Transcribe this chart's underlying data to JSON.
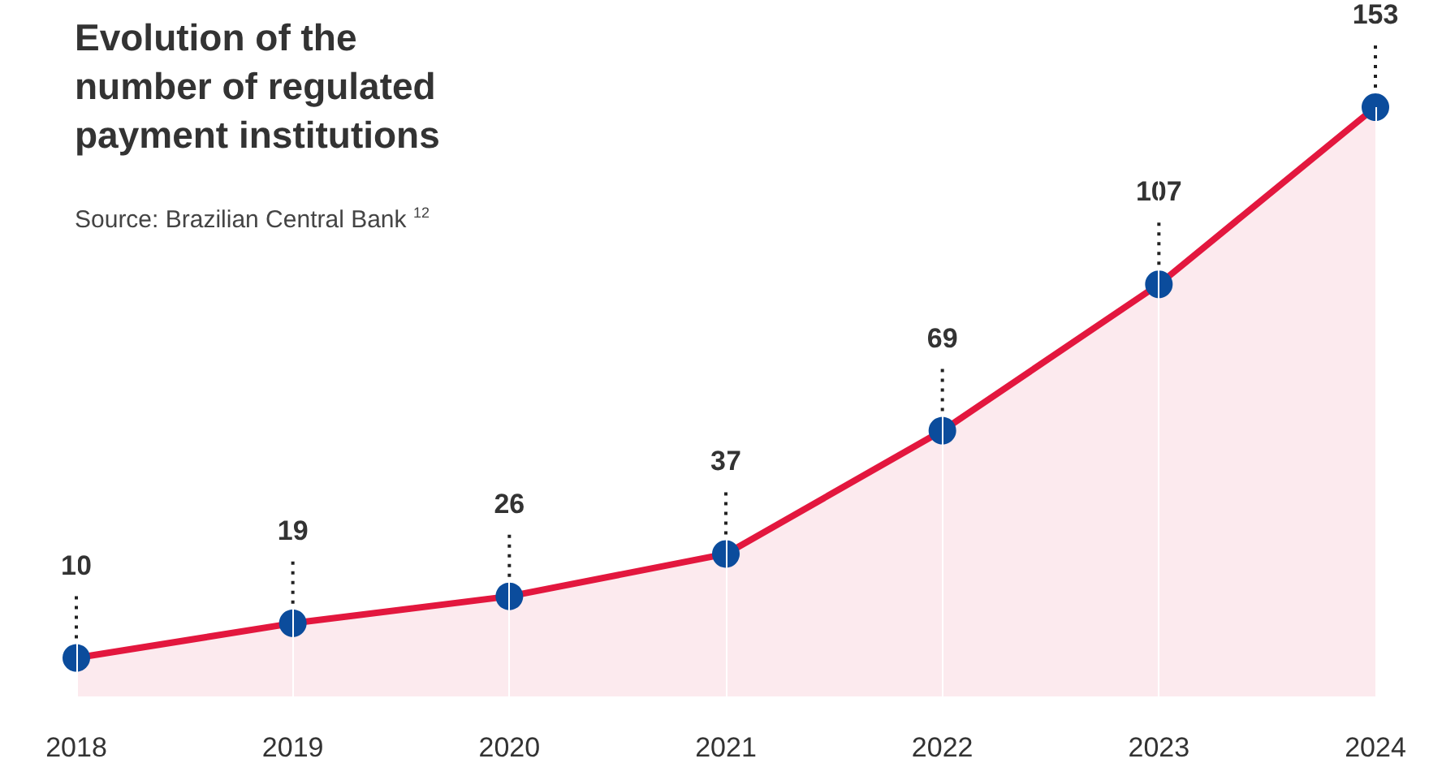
{
  "chart_data": {
    "type": "area",
    "title": "Evolution of the\nnumber of regulated\npayment institutions",
    "annotations": [
      "Source: Brazilian Central Bank $^{12}$"
    ],
    "categories": [
      "2018",
      "2019",
      "2020",
      "2021",
      "2022",
      "2023",
      "2024"
    ],
    "series": [
      {
        "color": "#e3173e",
        "colors": [
          "#0b4c9c",
          "#0b4c9c",
          "#0b4c9c",
          "#0b4c9c",
          "#0b4c9c",
          "#0b4c9c",
          "#0b4c9c"
        ],
        "values": [
          10,
          19,
          26,
          37,
          69,
          107,
          153
        ]
      }
    ],
    "data_labels": true,
    "marker": "circle",
    "grid": "x"
  }
}
